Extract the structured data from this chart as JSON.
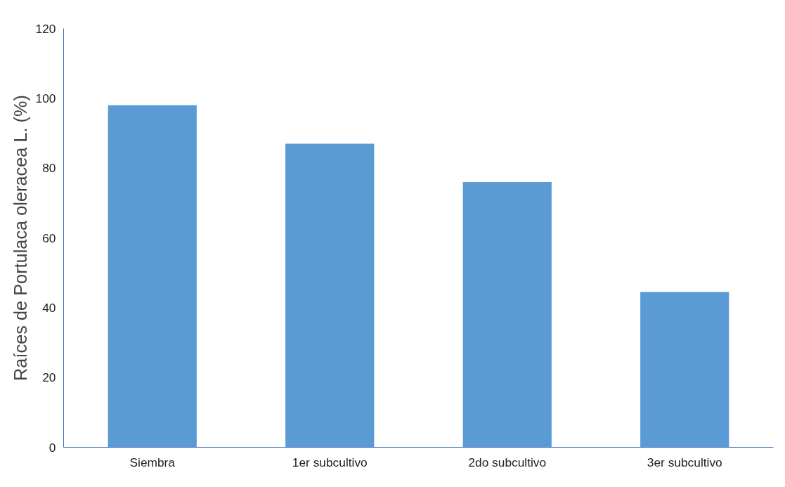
{
  "chart_data": {
    "type": "bar",
    "ylabel": "Raíces de Portulaca oleracea L. (%)",
    "categories": [
      "Siembra",
      "1er subcultivo",
      "2do subcultivo",
      "3er subcultivo"
    ],
    "values": [
      98,
      87,
      76,
      44.5
    ],
    "color": "#5b9bd5",
    "ylim": [
      0,
      120
    ],
    "yticks": [
      0,
      20,
      40,
      60,
      80,
      100,
      120
    ],
    "grid": false
  }
}
